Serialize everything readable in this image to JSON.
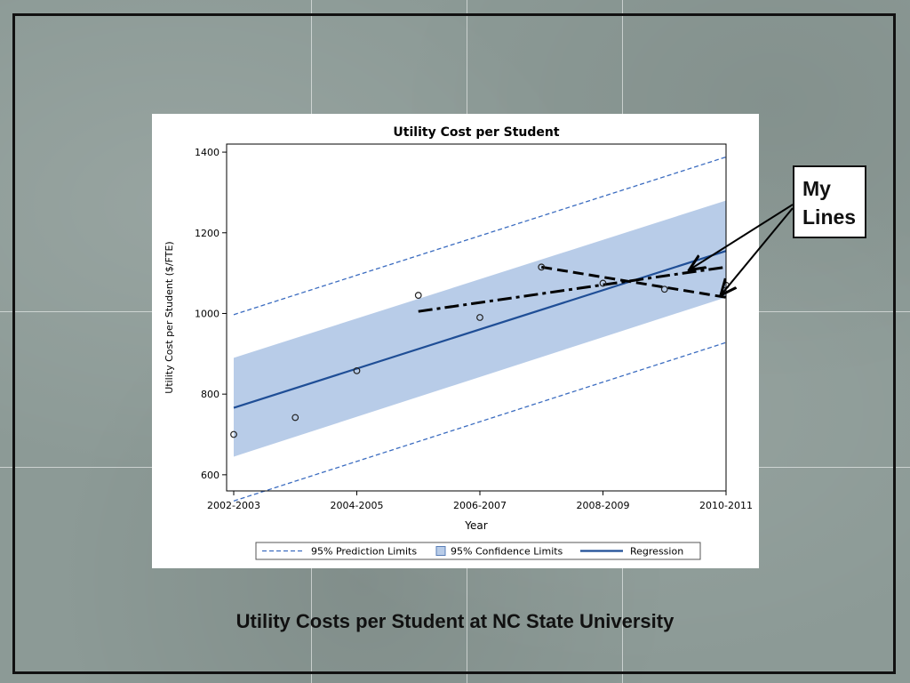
{
  "slide": {
    "caption": "Utility Costs per Student at NC State University",
    "callout_line1": "My",
    "callout_line2": "Lines"
  },
  "colors": {
    "regression": "#1f4e96",
    "confidence_band": "#b8cce8",
    "prediction": "#3b6cc0",
    "user_lines": "#000000"
  },
  "chart_data": {
    "type": "scatter",
    "title": "Utility Cost per Student",
    "xlabel": "Year",
    "ylabel": "Utility Cost per Student ($/FTE)",
    "x_ticks": [
      "2002-2003",
      "2004-2005",
      "2006-2007",
      "2008-2009",
      "2010-2011"
    ],
    "y_ticks": [
      600,
      800,
      1000,
      1200,
      1400
    ],
    "xlim": [
      2002,
      2010
    ],
    "ylim": [
      560,
      1420
    ],
    "grid": false,
    "legend_position": "bottom",
    "legend": [
      "95% Prediction Limits",
      "95% Confidence Limits",
      "Regression"
    ],
    "observations": {
      "x": [
        2002,
        2003,
        2004,
        2005,
        2006,
        2007,
        2008,
        2009,
        2010
      ],
      "y": [
        700,
        742,
        858,
        1045,
        990,
        1115,
        1075,
        1060,
        1070
      ]
    },
    "regression": {
      "x": [
        2002,
        2010
      ],
      "y": [
        766,
        1155
      ]
    },
    "confidence_limits": {
      "x": [
        2002,
        2010
      ],
      "lower": [
        645,
        1040
      ],
      "upper": [
        890,
        1280
      ]
    },
    "prediction_limits": {
      "x": [
        2002,
        2010
      ],
      "lower": [
        535,
        928
      ],
      "upper": [
        997,
        1388
      ]
    },
    "user_lines": [
      {
        "style": "dash",
        "x": [
          2007,
          2010
        ],
        "y": [
          1115,
          1040
        ]
      },
      {
        "style": "dashdot",
        "x": [
          2005,
          2010
        ],
        "y": [
          1005,
          1115
        ]
      }
    ]
  }
}
